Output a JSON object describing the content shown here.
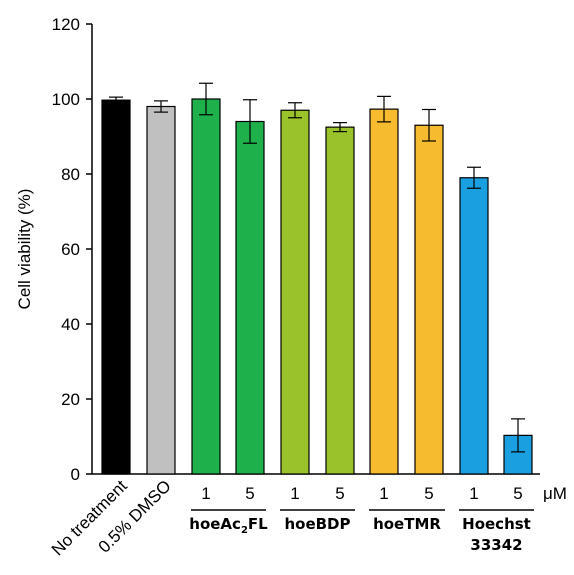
{
  "chart_data": {
    "type": "bar",
    "ylabel": "Cell viability (%)",
    "ylim": [
      0,
      120
    ],
    "yticks": [
      "0",
      "20",
      "40",
      "60",
      "80",
      "100",
      "120"
    ],
    "concentration_unit": "μM",
    "bars": [
      {
        "category": "No treatment",
        "group": "",
        "concentration": "",
        "value": 99.7,
        "error": 0.8,
        "color": "#000000"
      },
      {
        "category": "0.5% DMSO",
        "group": "",
        "concentration": "",
        "value": 98.0,
        "error": 1.5,
        "color": "#c0c0c0"
      },
      {
        "category": "hoeAc2FL 1 μM",
        "group": "hoeAc2FL",
        "concentration": "1",
        "value": 100.0,
        "error": 4.2,
        "color": "#1db04b"
      },
      {
        "category": "hoeAc2FL 5 μM",
        "group": "hoeAc2FL",
        "concentration": "5",
        "value": 94.0,
        "error": 5.8,
        "color": "#1db04b"
      },
      {
        "category": "hoeBDP 1 μM",
        "group": "hoeBDP",
        "concentration": "1",
        "value": 97.0,
        "error": 2.0,
        "color": "#9ac32b"
      },
      {
        "category": "hoeBDP 5 μM",
        "group": "hoeBDP",
        "concentration": "5",
        "value": 92.5,
        "error": 1.2,
        "color": "#9ac32b"
      },
      {
        "category": "hoeTMR 1 μM",
        "group": "hoeTMR",
        "concentration": "1",
        "value": 97.3,
        "error": 3.4,
        "color": "#f7bb2f"
      },
      {
        "category": "hoeTMR 5 μM",
        "group": "hoeTMR",
        "concentration": "5",
        "value": 93.0,
        "error": 4.2,
        "color": "#f7bb2f"
      },
      {
        "category": "Hoechst 33342 1 μM",
        "group": "Hoechst 33342",
        "concentration": "1",
        "value": 79.0,
        "error": 2.8,
        "color": "#1a9fe0"
      },
      {
        "category": "Hoechst 33342 5 μM",
        "group": "Hoechst 33342",
        "concentration": "5",
        "value": 10.3,
        "error": 4.4,
        "color": "#1a9fe0"
      }
    ],
    "untreated_labels": [
      "No treatment",
      "0.5% DMSO"
    ],
    "groups": [
      {
        "name": "hoeAc2FL",
        "label_main": "hoeAc",
        "label_sub": "2",
        "label_tail": "FL"
      },
      {
        "name": "hoeBDP",
        "label_main": "hoeBDP"
      },
      {
        "name": "hoeTMR",
        "label_main": "hoeTMR"
      },
      {
        "name": "Hoechst 33342",
        "label_line1": "Hoechst",
        "label_line2": "33342"
      }
    ]
  }
}
